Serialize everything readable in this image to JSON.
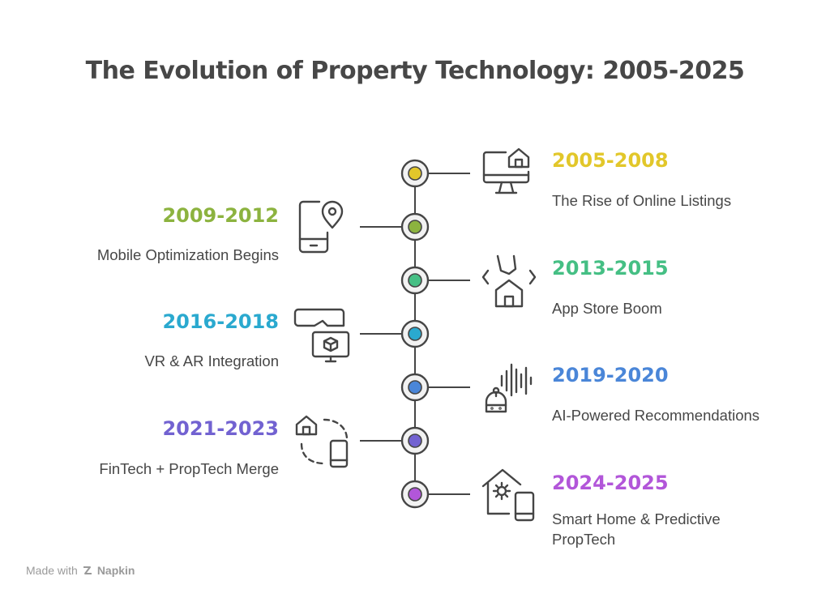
{
  "title": "The Evolution of Property Technology: 2005-2025",
  "timeline": [
    {
      "period": "2005-2008",
      "description": "The Rise of Online Listings",
      "color": "#e2c72a",
      "icon": "desktop-home-icon",
      "side": "right"
    },
    {
      "period": "2009-2012",
      "description": "Mobile Optimization Begins",
      "color": "#8cb33f",
      "icon": "phone-location-icon",
      "side": "left"
    },
    {
      "period": "2013-2015",
      "description": "App Store Boom",
      "color": "#45bf84",
      "icon": "app-house-icon",
      "side": "right"
    },
    {
      "period": "2016-2018",
      "description": "VR & AR Integration",
      "color": "#2aa9cf",
      "icon": "vr-headset-icon",
      "side": "left"
    },
    {
      "period": "2019-2020",
      "description": "AI-Powered Recommendations",
      "color": "#4a86d8",
      "icon": "robot-voice-icon",
      "side": "right"
    },
    {
      "period": "2021-2023",
      "description": "FinTech + PropTech Merge",
      "color": "#7262d1",
      "icon": "home-phone-sync-icon",
      "side": "left"
    },
    {
      "period": "2024-2025",
      "description": "Smart Home & Predictive PropTech",
      "description_lines": [
        "Smart Home & Predictive",
        "PropTech"
      ],
      "color": "#b256d9",
      "icon": "smart-home-phone-icon",
      "side": "right"
    }
  ],
  "footer": {
    "made_with": "Made with",
    "brand": "Napkin"
  }
}
